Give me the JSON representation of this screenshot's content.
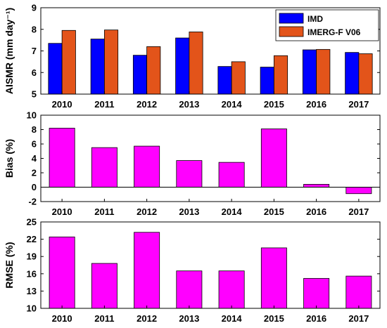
{
  "chart_data": [
    {
      "type": "bar",
      "categories": [
        "2010",
        "2011",
        "2012",
        "2013",
        "2014",
        "2015",
        "2016",
        "2017"
      ],
      "series": [
        {
          "name": "IMD",
          "color": "#0000ff",
          "values": [
            7.35,
            7.55,
            6.8,
            7.6,
            6.28,
            6.25,
            7.05,
            6.93
          ]
        },
        {
          "name": "IMERG-F V06",
          "color": "#e3541a",
          "values": [
            7.95,
            7.97,
            7.2,
            7.88,
            6.5,
            6.78,
            7.07,
            6.87
          ]
        }
      ],
      "ylabel": "AISMR (mm day⁻¹)",
      "ylim": [
        5,
        9
      ],
      "yticks": [
        5,
        6,
        7,
        8,
        9
      ],
      "legend": "top-right",
      "grid": false
    },
    {
      "type": "bar",
      "categories": [
        "2010",
        "2011",
        "2012",
        "2013",
        "2014",
        "2015",
        "2016",
        "2017"
      ],
      "series": [
        {
          "color": "#ff00ff",
          "values": [
            8.2,
            5.5,
            5.7,
            3.7,
            3.45,
            8.1,
            0.4,
            -0.9
          ]
        }
      ],
      "ylabel": "Bias (%)",
      "ylim": [
        -2,
        10
      ],
      "yticks": [
        -2,
        0,
        2,
        4,
        6,
        8,
        10
      ],
      "grid": false
    },
    {
      "type": "bar",
      "categories": [
        "2010",
        "2011",
        "2012",
        "2013",
        "2014",
        "2015",
        "2016",
        "2017"
      ],
      "series": [
        {
          "color": "#ff00ff",
          "values": [
            22.4,
            17.8,
            23.2,
            16.5,
            16.5,
            20.5,
            15.2,
            15.6
          ]
        }
      ],
      "ylabel": "RMSE (%)",
      "ylim": [
        10,
        25
      ],
      "yticks": [
        10,
        13,
        16,
        19,
        22,
        25
      ],
      "grid": false
    }
  ]
}
